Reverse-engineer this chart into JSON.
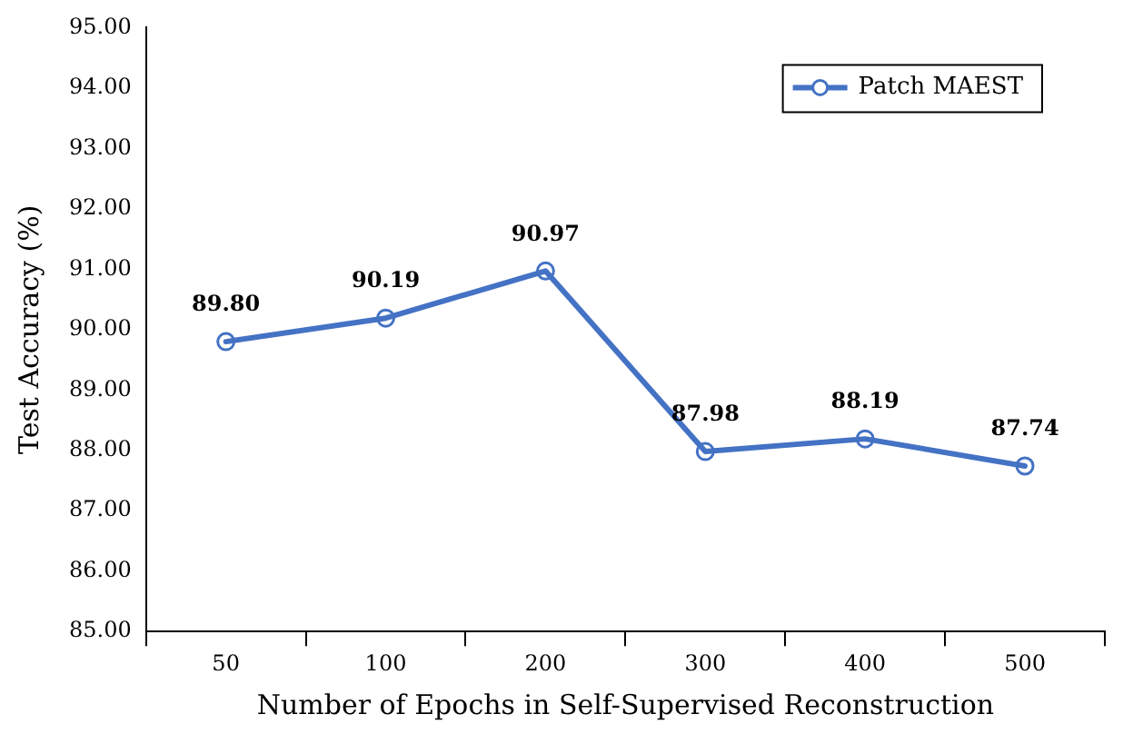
{
  "chart_data": {
    "type": "line",
    "xlabel": "Number of Epochs in Self-Supervised Reconstruction",
    "ylabel": "Test Accuracy (%)",
    "categories": [
      "50",
      "100",
      "200",
      "300",
      "400",
      "500"
    ],
    "series": [
      {
        "name": "Patch MAEST",
        "color": "#4472c4",
        "values": [
          89.8,
          90.19,
          90.97,
          87.98,
          88.19,
          87.74
        ],
        "value_labels": [
          "89.80",
          "90.19",
          "90.97",
          "87.98",
          "88.19",
          "87.74"
        ]
      }
    ],
    "ylim": [
      85,
      95
    ],
    "yticks": [
      {
        "value": 85,
        "label": "85.00"
      },
      {
        "value": 86,
        "label": "86.00"
      },
      {
        "value": 87,
        "label": "87.00"
      },
      {
        "value": 88,
        "label": "88.00"
      },
      {
        "value": 89,
        "label": "89.00"
      },
      {
        "value": 90,
        "label": "90.00"
      },
      {
        "value": 91,
        "label": "91.00"
      },
      {
        "value": 92,
        "label": "92.00"
      },
      {
        "value": 93,
        "label": "93.00"
      },
      {
        "value": 94,
        "label": "94.00"
      },
      {
        "value": 95,
        "label": "95.00"
      }
    ],
    "grid": false,
    "legend": "top right",
    "marker": "circle",
    "line_style": "solid"
  }
}
